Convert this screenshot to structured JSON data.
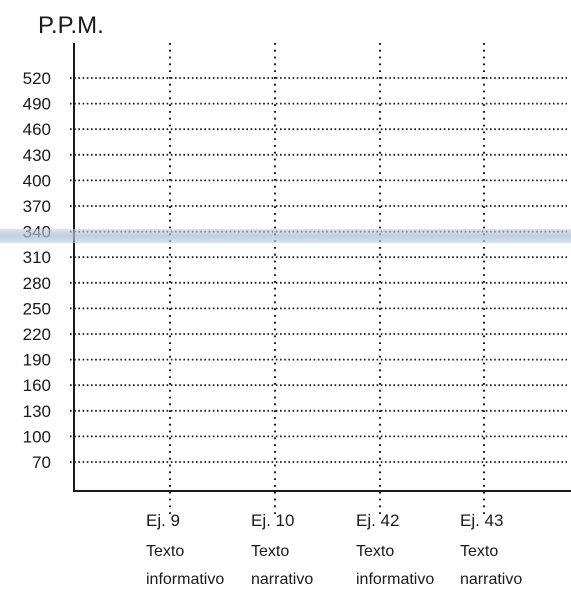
{
  "chart_data": {
    "type": "line",
    "ylabel": "P.P.M.",
    "y_ticks": [
      520,
      490,
      460,
      430,
      400,
      370,
      340,
      310,
      280,
      250,
      220,
      190,
      160,
      130,
      100,
      70
    ],
    "categories": [
      {
        "id": "Ej. 9",
        "line1": "Texto",
        "line2": "informativo"
      },
      {
        "id": "Ej. 10",
        "line1": "Texto",
        "line2": "narrativo"
      },
      {
        "id": "Ej. 42",
        "line1": "Texto",
        "line2": "informativo"
      },
      {
        "id": "Ej. 43",
        "line1": "Texto",
        "line2": "narrativo"
      }
    ],
    "series": [],
    "grid": true,
    "grid_style": "dotted",
    "highlighted_tick": 340
  },
  "colors": {
    "axis": "#1a1a1a",
    "grid": "#1a1a1a",
    "highlight": "#b4c6dd"
  }
}
